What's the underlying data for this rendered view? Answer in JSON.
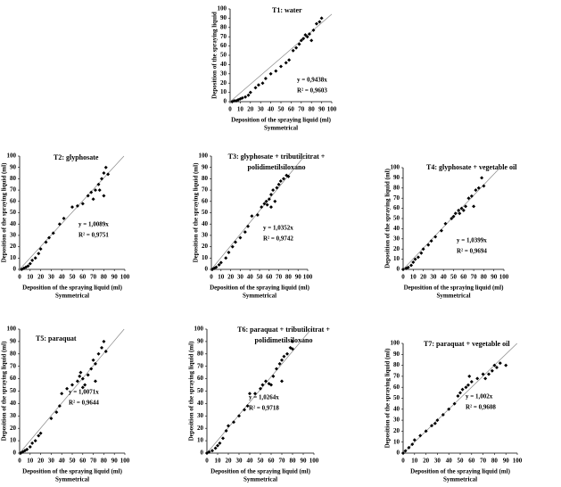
{
  "chart_data": [
    {
      "type": "scatter",
      "title": "T1: water",
      "x_label": "Deposition of the spraying  liquid  (ml)",
      "x_sublabel": "Symmetrical",
      "y_label": "Deposition of the spraying  liquid",
      "color": "#000000",
      "x": [
        2,
        4,
        6,
        8,
        10,
        12,
        15,
        18,
        20,
        25,
        28,
        32,
        35,
        40,
        45,
        50,
        55,
        58,
        62,
        65,
        68,
        70,
        72,
        74,
        76,
        78,
        80,
        82,
        85,
        88,
        90
      ],
      "y": [
        0,
        1,
        1,
        2,
        3,
        4,
        5,
        7,
        10,
        15,
        18,
        20,
        25,
        30,
        33,
        38,
        42,
        45,
        55,
        58,
        62,
        66,
        68,
        72,
        70,
        73,
        66,
        77,
        84,
        86,
        90
      ],
      "trendline": {
        "slope": 0.9438,
        "label": "y = 0,9438x",
        "r2": 0.9603,
        "r2_label": "R² = 0,9603"
      },
      "xlim": [
        0,
        100
      ],
      "ylim": [
        0,
        100
      ],
      "xticks": [
        0,
        10,
        20,
        30,
        40,
        50,
        60,
        70,
        80,
        90,
        100
      ],
      "yticks": [
        0,
        10,
        20,
        30,
        40,
        50,
        60,
        70,
        80,
        90,
        100
      ]
    },
    {
      "type": "scatter",
      "title": "T2: glyphosate",
      "x_label": "Deposition of the spraying  liquid  (ml)",
      "x_sublabel": "Symmetrical",
      "y_label": "Deposition of the spraying  liquid  (ml)",
      "color": "#000000",
      "x": [
        2,
        4,
        6,
        8,
        10,
        12,
        15,
        18,
        20,
        25,
        28,
        32,
        38,
        42,
        50,
        55,
        60,
        65,
        68,
        70,
        72,
        75,
        78,
        80,
        82,
        84,
        80,
        76
      ],
      "y": [
        0,
        1,
        2,
        3,
        5,
        8,
        10,
        14,
        18,
        24,
        28,
        32,
        40,
        45,
        55,
        56,
        58,
        65,
        68,
        62,
        70,
        75,
        80,
        85,
        90,
        84,
        65,
        70
      ],
      "trendline": {
        "slope": 1.0089,
        "label": "y = 1,0089x",
        "r2": 0.9751,
        "r2_label": "R² = 0,9751"
      },
      "xlim": [
        0,
        100
      ],
      "ylim": [
        0,
        100
      ],
      "xticks": [
        0,
        10,
        20,
        30,
        40,
        50,
        60,
        70,
        80,
        90,
        100
      ],
      "yticks": [
        0,
        10,
        20,
        30,
        40,
        50,
        60,
        70,
        80,
        90,
        100
      ]
    },
    {
      "type": "scatter",
      "title": [
        "T3: glyphosate + tributilcitrat +",
        "polidimetilsiloxano"
      ],
      "x_label": "Deposition of the spraying  liquid  (ml)",
      "x_sublabel": "Symmetrical",
      "y_label": "Deposition of the spraying  liquid  (ml)",
      "color": "#000000",
      "x": [
        1,
        3,
        5,
        8,
        10,
        15,
        18,
        22,
        25,
        30,
        35,
        38,
        42,
        48,
        52,
        55,
        57,
        58,
        60,
        62,
        64,
        68,
        70,
        72,
        75,
        78,
        80,
        62,
        66
      ],
      "y": [
        0,
        1,
        2,
        4,
        6,
        10,
        15,
        20,
        24,
        28,
        33,
        38,
        47,
        48,
        55,
        58,
        60,
        57,
        62,
        66,
        70,
        72,
        75,
        78,
        80,
        83,
        82,
        55,
        60
      ],
      "trendline": {
        "slope": 1.0352,
        "label": "y = 1,0352x",
        "r2": 0.9742,
        "r2_label": "R² = 0,9742"
      },
      "xlim": [
        0,
        100
      ],
      "ylim": [
        0,
        100
      ],
      "xticks": [
        0,
        10,
        20,
        30,
        40,
        50,
        60,
        70,
        80,
        90,
        100
      ],
      "yticks": [
        0,
        10,
        20,
        30,
        40,
        50,
        60,
        70,
        80,
        90,
        100
      ]
    },
    {
      "type": "scatter",
      "title": "T4: glyphosate +  vegetable oil",
      "x_label": "Deposition of the spraying  liquid  (ml)",
      "x_sublabel": "Symmetrical",
      "y_label": "Deposition of the spraying  liquid  (ml)",
      "color": "#000000",
      "x": [
        0,
        3,
        5,
        8,
        10,
        12,
        15,
        18,
        20,
        25,
        28,
        32,
        38,
        42,
        48,
        50,
        52,
        55,
        58,
        60,
        62,
        65,
        68,
        70,
        72,
        75,
        78,
        80,
        56
      ],
      "y": [
        0,
        1,
        2,
        4,
        7,
        10,
        12,
        16,
        20,
        24,
        28,
        32,
        38,
        45,
        50,
        52,
        55,
        58,
        60,
        58,
        62,
        70,
        72,
        62,
        78,
        80,
        90,
        82,
        55
      ],
      "trendline": {
        "slope": 1.0399,
        "label": "y = 1,0399x",
        "r2": 0.9694,
        "r2_label": "R² = 0,9694"
      },
      "xlim": [
        0,
        100
      ],
      "ylim": [
        0,
        100
      ],
      "xticks": [
        0,
        10,
        20,
        30,
        40,
        50,
        60,
        70,
        80,
        90,
        100
      ],
      "yticks": [
        0,
        10,
        20,
        30,
        40,
        50,
        60,
        70,
        80,
        90,
        100
      ]
    },
    {
      "type": "scatter",
      "title": "T5: paraquat",
      "x_label": "Deposition of the spraying  liquid  (ml)",
      "x_sublabel": "Symmetrical",
      "y_label": "Deposition of the spraying  liquid  (ml)",
      "color": "#000000",
      "x": [
        1,
        3,
        5,
        7,
        10,
        12,
        15,
        18,
        20,
        30,
        35,
        38,
        40,
        45,
        50,
        55,
        57,
        58,
        60,
        60,
        62,
        65,
        68,
        70,
        72,
        75,
        78,
        80,
        82,
        72
      ],
      "y": [
        0,
        1,
        2,
        3,
        5,
        8,
        10,
        14,
        16,
        28,
        33,
        38,
        48,
        52,
        55,
        58,
        62,
        65,
        60,
        53,
        55,
        63,
        68,
        75,
        72,
        80,
        85,
        90,
        82,
        58
      ],
      "trendline": {
        "slope": 1.0071,
        "label": "y = 1,0071x",
        "r2": 0.9644,
        "r2_label": "R² = 0,9644"
      },
      "xlim": [
        0,
        100
      ],
      "ylim": [
        0,
        100
      ],
      "xticks": [
        0,
        10,
        20,
        30,
        40,
        50,
        60,
        70,
        80,
        90,
        100
      ],
      "yticks": [
        0,
        10,
        20,
        30,
        40,
        50,
        60,
        70,
        80,
        90,
        100
      ]
    },
    {
      "type": "scatter",
      "title": [
        "T6: paraquat + tributilcitrat +",
        "polidimetilsiloxano"
      ],
      "x_label": "Deposition of the spraying  liquid  (ml)",
      "x_sublabel": "Symmetrical",
      "y_label": "Deposition of the spraying  liquid  (ml)",
      "color": "#000000",
      "x": [
        0,
        2,
        5,
        8,
        10,
        12,
        15,
        18,
        20,
        25,
        30,
        35,
        38,
        40,
        50,
        52,
        55,
        58,
        60,
        62,
        65,
        68,
        70,
        72,
        75,
        78,
        80,
        80,
        45,
        70
      ],
      "y": [
        0,
        1,
        2,
        4,
        6,
        8,
        12,
        18,
        22,
        25,
        30,
        35,
        38,
        48,
        52,
        55,
        58,
        56,
        55,
        62,
        68,
        72,
        75,
        78,
        80,
        85,
        90,
        84,
        48,
        58
      ],
      "trendline": {
        "slope": 1.0264,
        "label": "y = 1,0264x",
        "r2": 0.9718,
        "r2_label": "R² = 0,9718"
      },
      "xlim": [
        0,
        100
      ],
      "ylim": [
        0,
        100
      ],
      "xticks": [
        0,
        10,
        20,
        30,
        40,
        50,
        60,
        70,
        80,
        90,
        100
      ],
      "yticks": [
        0,
        10,
        20,
        30,
        40,
        50,
        60,
        70,
        80,
        90,
        100
      ]
    },
    {
      "type": "scatter",
      "title": "T7: paraquat + vegetable  oil",
      "x_label": "Deposition of the spraying  liquid  (ml)",
      "x_sublabel": "Symmetrical",
      "y_label": "Deposition of the spraying  liquid  (ml)",
      "color": "#000000",
      "x": [
        0,
        2,
        5,
        8,
        10,
        15,
        20,
        25,
        28,
        30,
        35,
        40,
        45,
        48,
        50,
        52,
        55,
        57,
        58,
        60,
        65,
        70,
        72,
        75,
        78,
        80,
        82,
        85,
        90
      ],
      "y": [
        0,
        2,
        5,
        8,
        12,
        16,
        20,
        25,
        27,
        30,
        35,
        40,
        45,
        52,
        55,
        58,
        60,
        62,
        70,
        65,
        68,
        72,
        68,
        72,
        75,
        80,
        78,
        82,
        80
      ],
      "trendline": {
        "slope": 1.002,
        "label": "y = 1,002x",
        "r2": 0.9608,
        "r2_label": "R² = 0,9608"
      },
      "xlim": [
        0,
        100
      ],
      "ylim": [
        0,
        100
      ],
      "xticks": [
        0,
        10,
        20,
        30,
        40,
        50,
        60,
        70,
        80,
        90,
        100
      ],
      "yticks": [
        0,
        10,
        20,
        30,
        40,
        50,
        60,
        70,
        80,
        90,
        100
      ]
    }
  ]
}
